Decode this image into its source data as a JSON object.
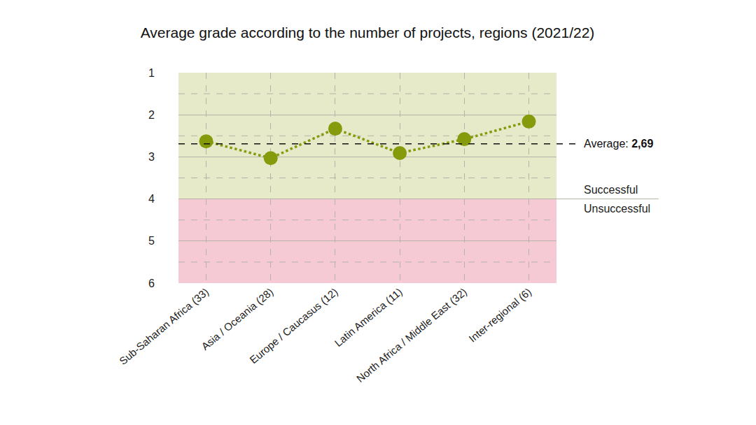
{
  "chart_data": {
    "type": "line",
    "title": "Average grade according to the number of projects, regions (2021/22)",
    "categories": [
      "Sub-Saharan Africa (33)",
      "Asia / Oceania (28)",
      "Europe / Caucasus (12)",
      "Latin America (11)",
      "North Africa / Middle East (32)",
      "Inter-regional (6)"
    ],
    "values": [
      2.63,
      3.03,
      2.33,
      2.91,
      2.58,
      2.16
    ],
    "color": "#859b0c",
    "marker": "circle",
    "line_style": "dot",
    "ylim": [
      6,
      1
    ],
    "yticks": [
      1,
      2,
      3,
      4,
      5,
      6
    ],
    "minor_yticks": [
      1.5,
      2.5,
      3.5,
      4.5,
      5.5
    ],
    "grid": true,
    "reference_line": {
      "value": 2.69,
      "label": "Average:",
      "value_label": "2,69"
    },
    "zones": [
      {
        "label": "Successful",
        "from": 1,
        "to": 4,
        "color": "#e6eac8"
      },
      {
        "label": "Unsuccessful",
        "from": 4,
        "to": 6,
        "color": "#f5cad5"
      }
    ]
  }
}
